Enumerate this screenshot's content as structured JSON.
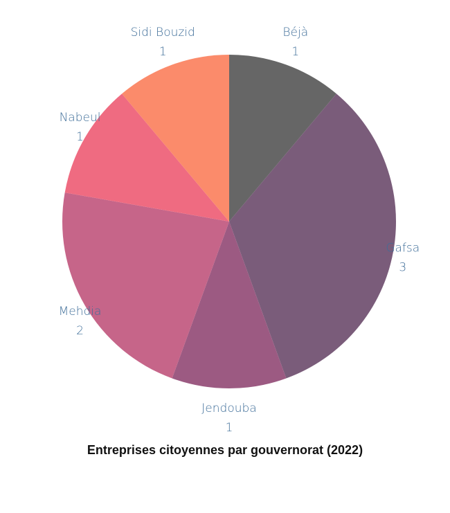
{
  "chart_data": {
    "type": "pie",
    "title": "Entreprises citoyennes par gouvernorat (2022)",
    "slices": [
      {
        "label": "Béjà",
        "value": 1,
        "color": "#666666"
      },
      {
        "label": "Gafsa",
        "value": 3,
        "color": "#7a5c7a"
      },
      {
        "label": "Jendouba",
        "value": 1,
        "color": "#9c5a82"
      },
      {
        "label": "Mehdia",
        "value": 2,
        "color": "#c66589"
      },
      {
        "label": "Nabeul",
        "value": 1,
        "color": "#ef6b81"
      },
      {
        "label": "Sidi Bouzid",
        "value": 1,
        "color": "#fb8b6b"
      }
    ],
    "start_angle_deg": 0,
    "direction": "clockwise",
    "legend": "none",
    "label_color": "#3f6e99"
  }
}
